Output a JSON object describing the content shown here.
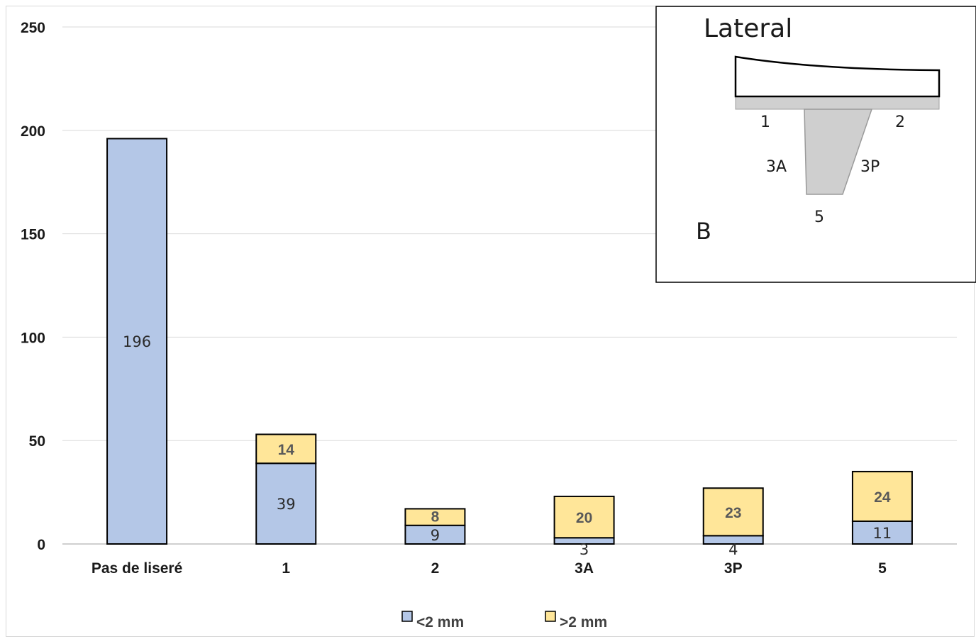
{
  "chart_data": {
    "type": "bar",
    "stacked": true,
    "categories": [
      "Pas de liseré",
      "1",
      "2",
      "3A",
      "3P",
      "5"
    ],
    "series": [
      {
        "name": "<2 mm",
        "color": "#b4c7e7",
        "values": [
          196,
          39,
          9,
          3,
          4,
          11
        ]
      },
      {
        "name": ">2 mm",
        "color": "#ffe699",
        "values": [
          0,
          14,
          8,
          20,
          23,
          24
        ]
      }
    ],
    "data_labels": {
      "<2 mm": [
        "196",
        "39",
        "9",
        "3",
        "4",
        "11"
      ],
      ">2 mm": [
        "",
        "14",
        "8",
        "20",
        "23",
        "24"
      ]
    },
    "yticks": [
      0,
      50,
      100,
      150,
      200,
      250
    ],
    "ylim": [
      0,
      250
    ],
    "grid": true,
    "legend": "bottom-center"
  },
  "inset": {
    "title": "Lateral",
    "letter": "B",
    "zone_labels": [
      "1",
      "2",
      "3A",
      "3P",
      "5"
    ]
  }
}
